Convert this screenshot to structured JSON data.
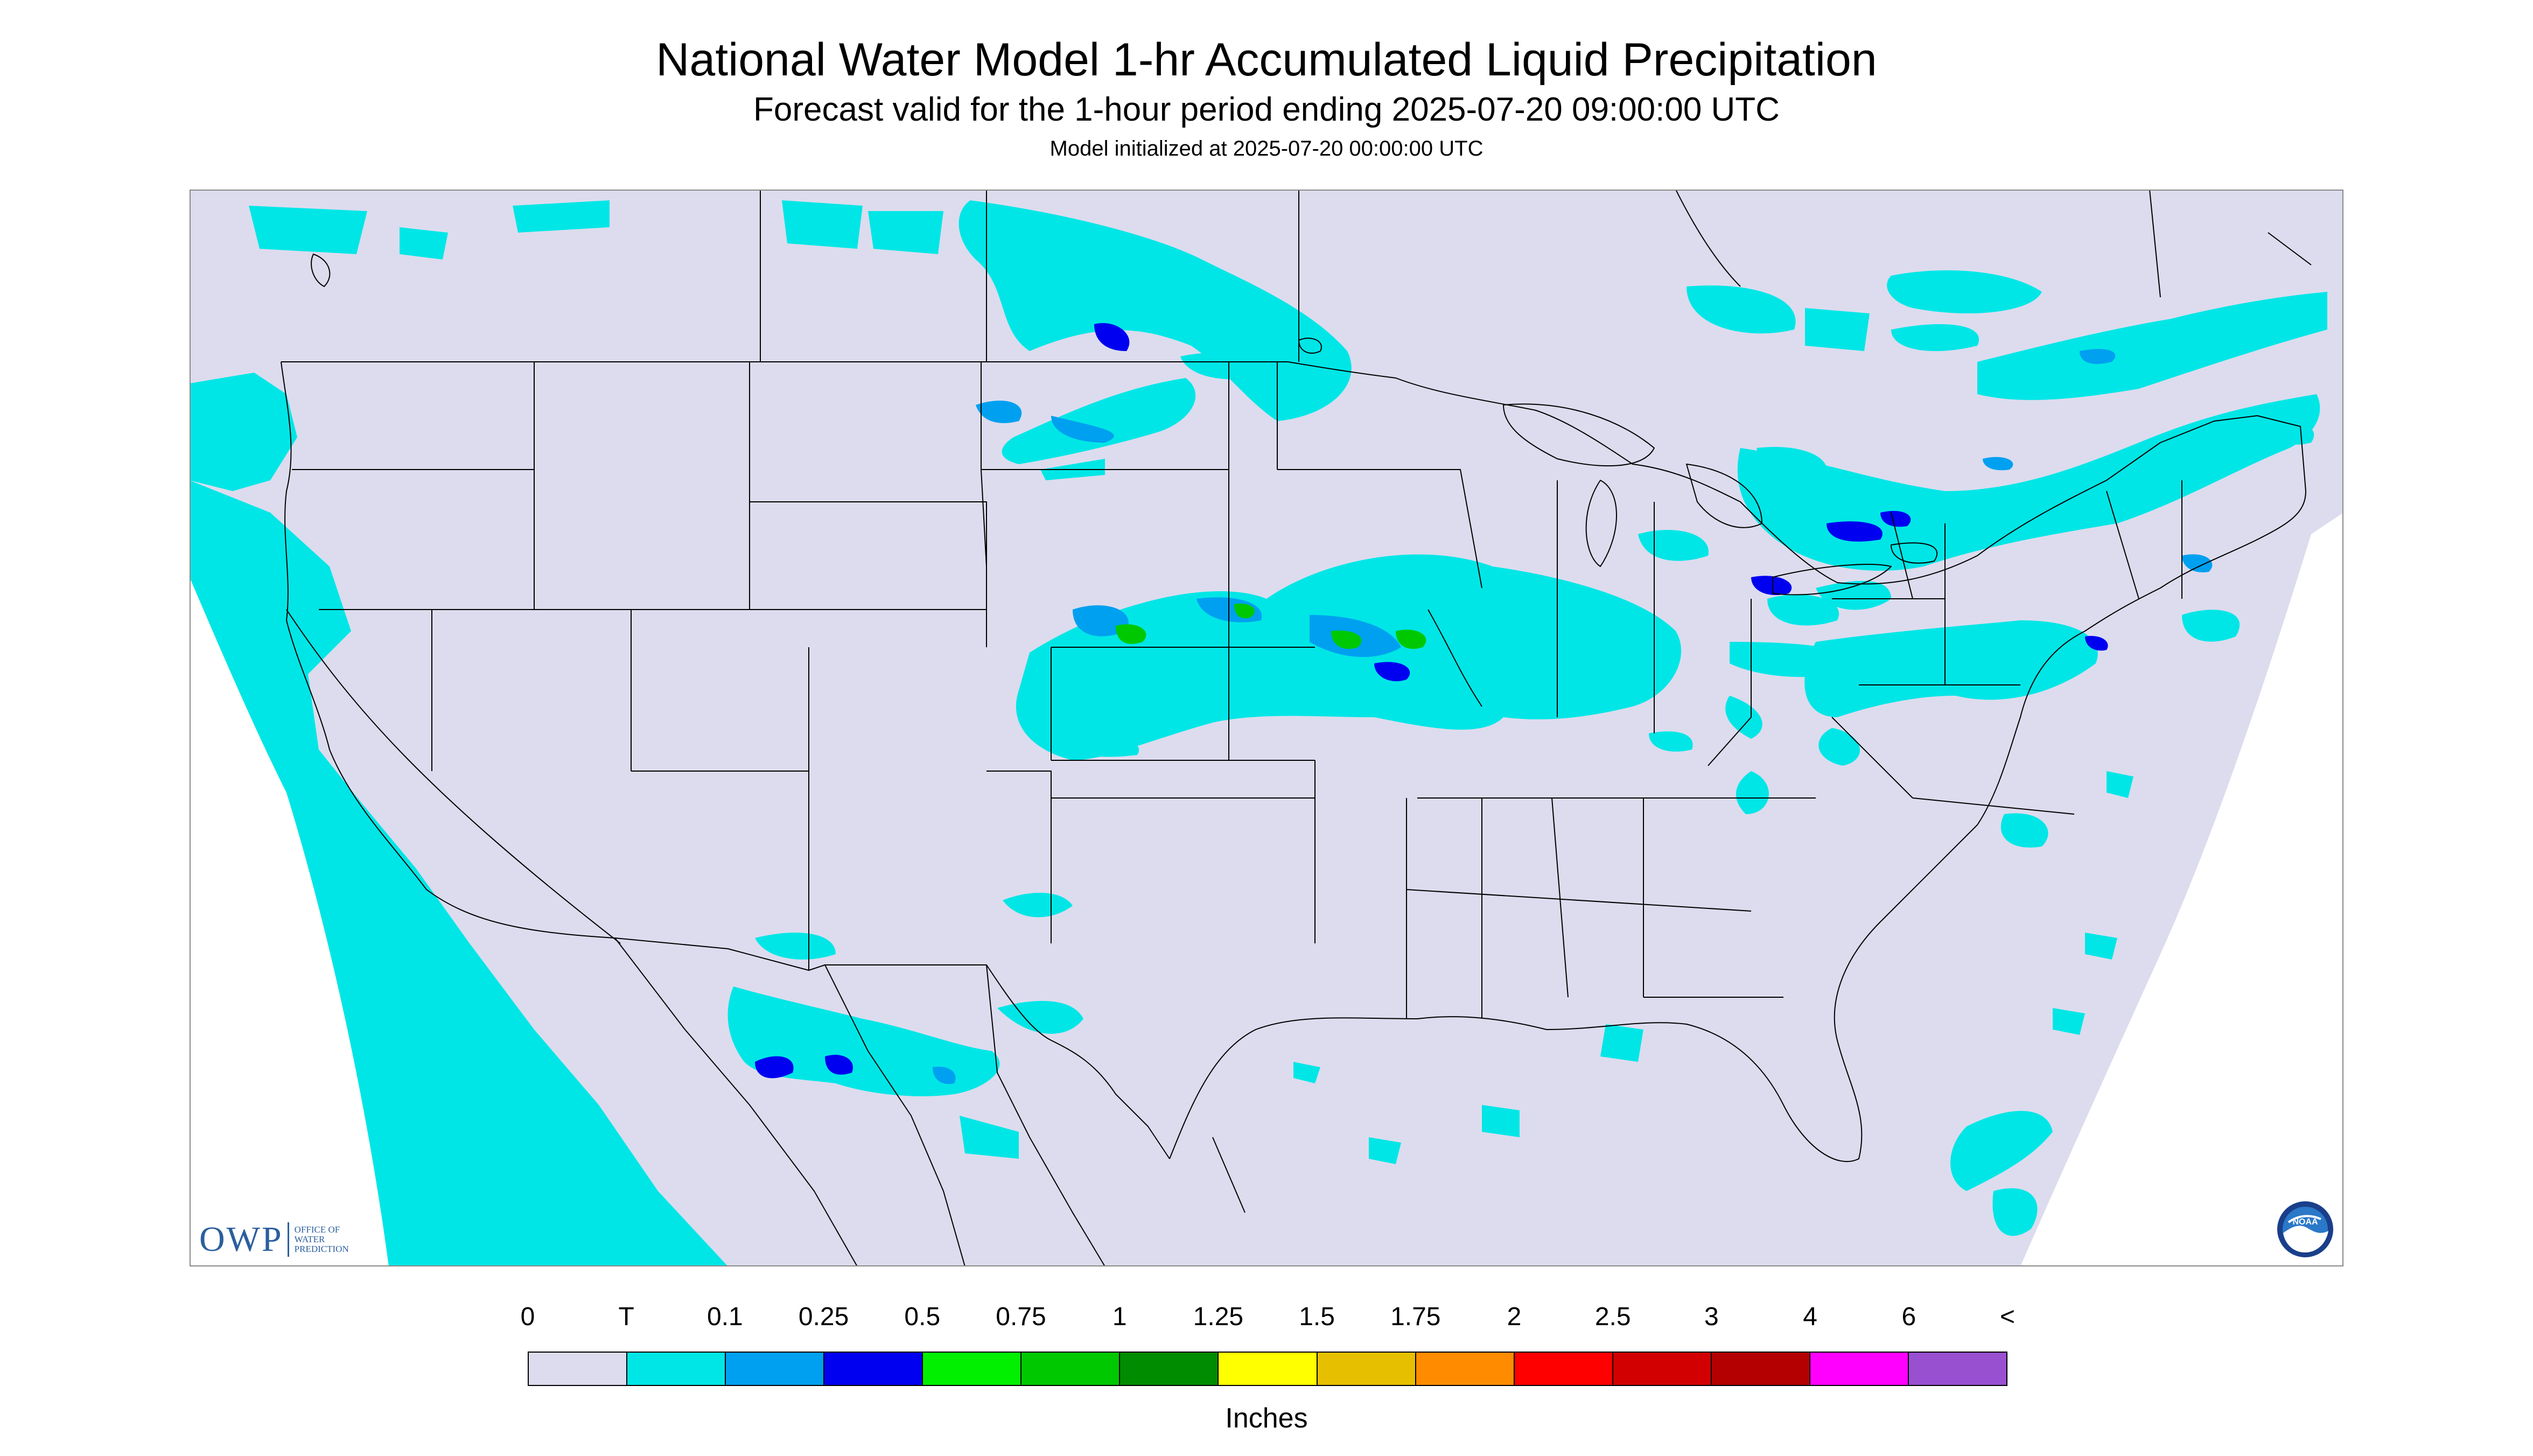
{
  "header": {
    "title": "National Water Model 1-hr Accumulated Liquid Precipitation",
    "subtitle": "Forecast valid for the 1-hour period ending 2025-07-20 09:00:00 UTC",
    "init_line": "Model initialized at 2025-07-20 00:00:00 UTC"
  },
  "colors": {
    "background": "#dcdcee",
    "outside_domain": "#ffffff",
    "trace": "#00e6e6",
    "boundary": "#000000",
    "owp_blue": "#2b5f9e"
  },
  "logos": {
    "owp_mark": "OWP",
    "owp_text": "OFFICE OF WATER PREDICTION",
    "noaa_text": "NOAA"
  },
  "legend": {
    "ticks": [
      "0",
      "T",
      "0.1",
      "0.25",
      "0.5",
      "0.75",
      "1",
      "1.25",
      "1.5",
      "1.75",
      "2",
      "2.5",
      "3",
      "4",
      "6",
      "<"
    ],
    "colors": [
      "#dcdcee",
      "#00e6e6",
      "#00a0f0",
      "#0000f0",
      "#00f000",
      "#00c800",
      "#008c00",
      "#ffff00",
      "#e6c000",
      "#ff8c00",
      "#ff0000",
      "#d20000",
      "#b40000",
      "#ff00ff",
      "#9850d0"
    ],
    "units": "Inches"
  }
}
